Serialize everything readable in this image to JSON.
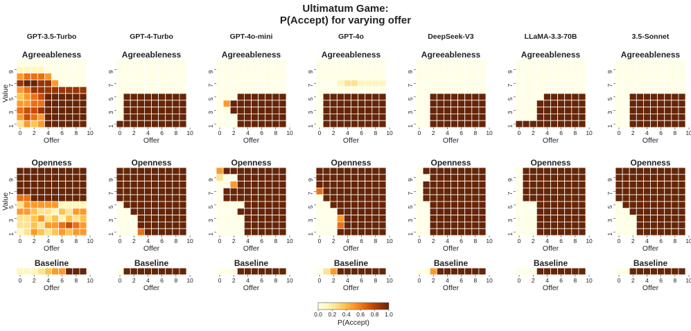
{
  "title": {
    "line1": "Ultimatum Game:",
    "line2": "P(Accept) for varying offer"
  },
  "colors": {
    "cmap": [
      "#ffffe5",
      "#fff7bc",
      "#fee391",
      "#fec44f",
      "#fe9929",
      "#ec7014",
      "#cc4c02",
      "#993404",
      "#662506"
    ]
  },
  "chart_data": {
    "type": "heatmap",
    "x_label": "Offer",
    "y_label": "Value",
    "x_ticks": [
      "0",
      "2",
      "4",
      "6",
      "8",
      "10"
    ],
    "y_ticks": [
      "1",
      "3",
      "5",
      "7",
      "9"
    ],
    "colorbar": {
      "label": "P(Accept)",
      "ticks": [
        "0.0",
        "0.2",
        "0.4",
        "0.6",
        "0.8",
        "1.0"
      ],
      "range": [
        0,
        1
      ]
    },
    "models": [
      "GPT-3.5-Turbo",
      "GPT-4-Turbo",
      "GPT-4o-mini",
      "GPT-4o",
      "DeepSeek-V3",
      "LLaMA-3.3-70B",
      "3.5-Sonnet"
    ],
    "panels": [
      {
        "model": "GPT-3.5-Turbo",
        "agreeableness": [
          "0000000000",
          "1111000000",
          "4666500000",
          "8998850000",
          "5688888888",
          "3467999999",
          "4566999999",
          "6778999999",
          "5765999999",
          "2434999999"
        ],
        "openness": [
          "9999999999",
          "9999999999",
          "9999999999",
          "9999999999",
          "6699999999",
          "2444441111",
          "4432213254",
          "2234231323",
          "2232456765",
          "1243234354"
        ],
        "baseline": "1112345999"
      },
      {
        "model": "GPT-4-Turbo",
        "agreeableness": [
          "0000000000",
          "0000000000",
          "0000000000",
          "0000000000",
          "0000000000",
          "0999999999",
          "0999999999",
          "0999999999",
          "0999999999",
          "9999999999"
        ],
        "openness": [
          "9999999999",
          "9999999999",
          "9999999999",
          "9999999999",
          "9999999999",
          "0999999999",
          "0099999999",
          "0009999999",
          "0009999999",
          "0006999999"
        ],
        "baseline": "0999999999"
      },
      {
        "model": "GPT-4o-mini",
        "agreeableness": [
          "0000000000",
          "0000000000",
          "0000000000",
          "0000000000",
          "0000000000",
          "0009999999",
          "0599999999",
          "0099999999",
          "0009999999",
          "0009999999"
        ],
        "openness": [
          "5999999999",
          "2009999999",
          "0049999999",
          "0999999999",
          "0999999999",
          "0000999999",
          "0009999999",
          "0000999999",
          "0000999999",
          "0000999999"
        ],
        "baseline": "0009999999"
      },
      {
        "model": "GPT-4o",
        "agreeableness": [
          "0000000000",
          "0000000000",
          "0000000000",
          "0001221111",
          "0000000000",
          "0999999999",
          "0999999999",
          "0999999999",
          "0999999999",
          "0999999999"
        ],
        "openness": [
          "9999999999",
          "9999999999",
          "9999999999",
          "6999999999",
          "0999999999",
          "0099999999",
          "0009999999",
          "0005999999",
          "0006999999",
          "0009999999"
        ],
        "baseline": "0259999999"
      },
      {
        "model": "DeepSeek-V3",
        "agreeableness": [
          "0000000000",
          "0000000000",
          "0000000000",
          "0000000000",
          "0000000000",
          "0099999999",
          "0099999999",
          "0099999999",
          "0099999999",
          "0099999999"
        ],
        "openness": [
          "0999999999",
          "0099999999",
          "0999999999",
          "0999999999",
          "0999999999",
          "0099999999",
          "0099999999",
          "0099999999",
          "0099999999",
          "0099999999"
        ],
        "baseline": "0049999999"
      },
      {
        "model": "LLaMA-3.3-70B",
        "agreeableness": [
          "0000000000",
          "0000000000",
          "0000000000",
          "0000000000",
          "0000000000",
          "0000999999",
          "0009999999",
          "0009999999",
          "0009999999",
          "9999999999"
        ],
        "openness": [
          "0999999999",
          "0999999999",
          "0999999999",
          "0999999999",
          "0999999999",
          "0009999999",
          "0009999999",
          "0009999999",
          "0009999999",
          "0009999999"
        ],
        "baseline": "0009999999"
      },
      {
        "model": "3.5-Sonnet",
        "agreeableness": [
          "0000000000",
          "0000000000",
          "0000000000",
          "0000000000",
          "0000000000",
          "0099999999",
          "0099999999",
          "0099999999",
          "0099999999",
          "0099999999"
        ],
        "openness": [
          "9999999999",
          "9999999999",
          "9999999999",
          "9999999999",
          "9999999999",
          "0999999999",
          "0099999999",
          "0009999999",
          "0009999999",
          "0009999999"
        ],
        "baseline": "0099999999"
      }
    ]
  },
  "row_titles": {
    "agreeableness": "Agreeableness",
    "openness": "Openness",
    "baseline": "Baseline"
  }
}
